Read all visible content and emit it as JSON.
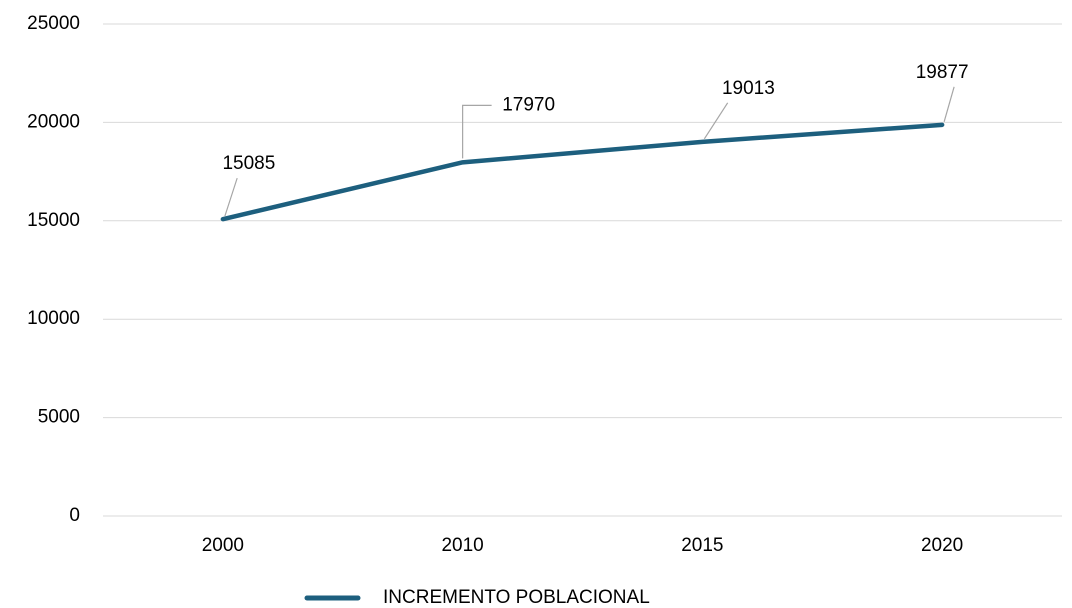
{
  "chart_data": {
    "type": "line",
    "categories": [
      "2000",
      "2010",
      "2015",
      "2020"
    ],
    "series": [
      {
        "name": "INCREMENTO POBLACIONAL",
        "color": "#1d5f7e",
        "values": [
          15085,
          17970,
          19013,
          19877
        ]
      }
    ],
    "ylim": [
      0,
      25000
    ],
    "yticks": [
      0,
      5000,
      10000,
      15000,
      20000,
      25000
    ],
    "grid": true,
    "legend": "bottom"
  }
}
